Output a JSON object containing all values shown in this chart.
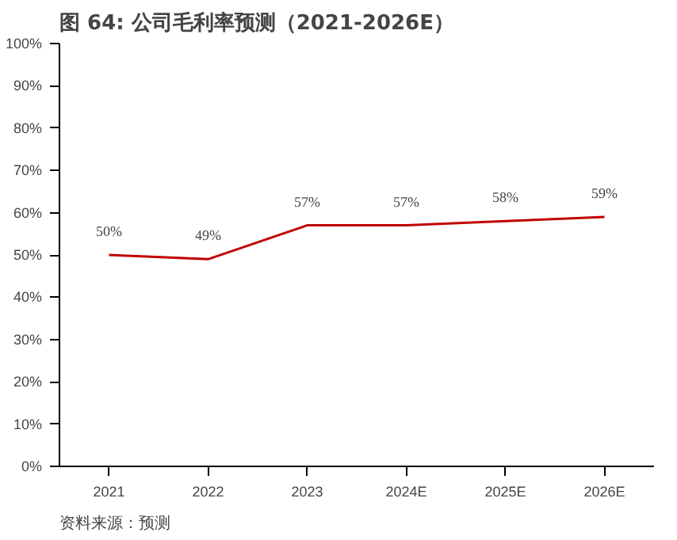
{
  "chart_data": {
    "type": "line",
    "title": "图 64: 公司毛利率预测（2021-2026E）",
    "categories": [
      "2021",
      "2022",
      "2023",
      "2024E",
      "2025E",
      "2026E"
    ],
    "series": [
      {
        "color": "#c00000",
        "values": [
          50,
          49,
          57,
          57,
          58,
          59
        ],
        "value_labels": [
          "50%",
          "49%",
          "57%",
          "57%",
          "58%",
          "59%"
        ]
      }
    ],
    "ylim": [
      0,
      100
    ],
    "yticks": [
      {
        "value": 0,
        "label": "0%"
      },
      {
        "value": 10,
        "label": "10%"
      },
      {
        "value": 20,
        "label": "20%"
      },
      {
        "value": 30,
        "label": "30%"
      },
      {
        "value": 40,
        "label": "40%"
      },
      {
        "value": 50,
        "label": "50%"
      },
      {
        "value": 60,
        "label": "60%"
      },
      {
        "value": 70,
        "label": "70%"
      },
      {
        "value": 80,
        "label": "80%"
      },
      {
        "value": 90,
        "label": "90%"
      },
      {
        "value": 100,
        "label": "100%"
      }
    ],
    "grid": false,
    "annotations": [
      "资料来源：预测"
    ]
  }
}
